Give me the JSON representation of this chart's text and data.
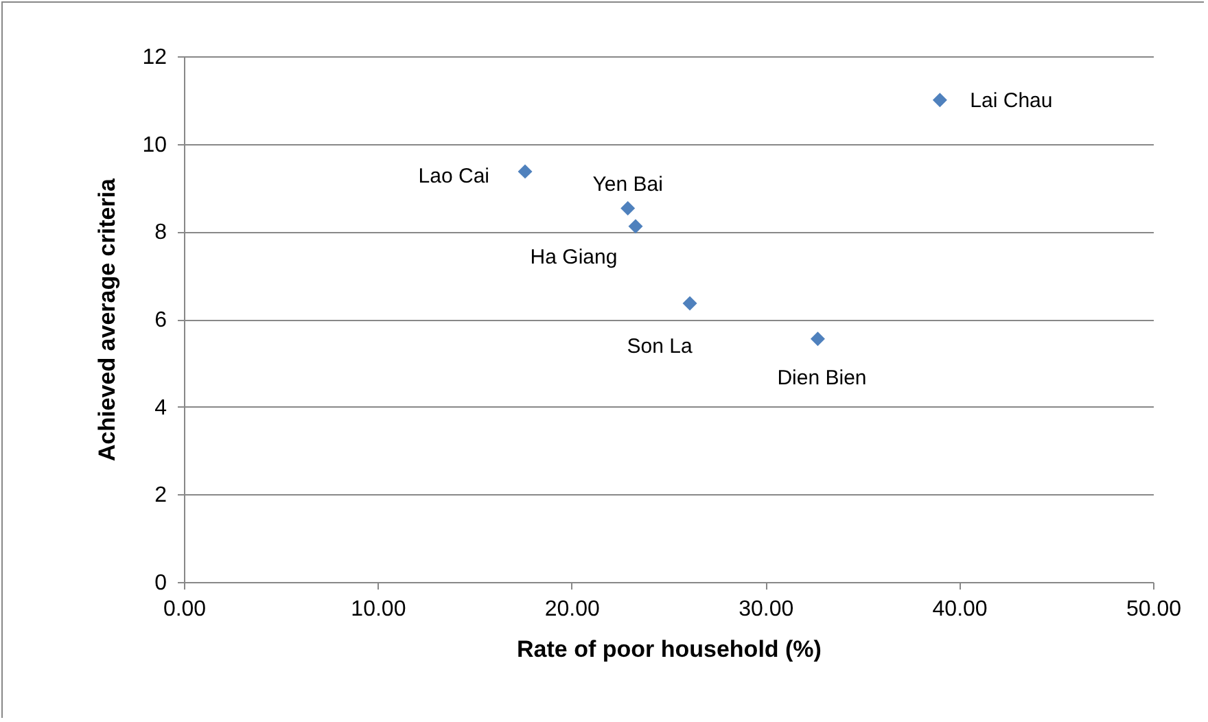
{
  "chart_data": {
    "type": "scatter",
    "xlabel": "Rate of poor household (%)",
    "ylabel": "Achieved average criteria",
    "x": [
      39.0,
      17.6,
      22.9,
      23.3,
      26.1,
      32.7
    ],
    "series": [
      {
        "color": "#4f81bd",
        "values": [
          11.0,
          9.37,
          8.53,
          8.12,
          6.36,
          5.55
        ]
      }
    ],
    "marker": "diamond",
    "grid": "y",
    "legend": false,
    "xlim": [
      0,
      50
    ],
    "xticks": [
      {
        "value": 0,
        "label": "0.00"
      },
      {
        "value": 10,
        "label": "10.00"
      },
      {
        "value": 20,
        "label": "20.00"
      },
      {
        "value": 30,
        "label": "30.00"
      },
      {
        "value": 40,
        "label": "40.00"
      },
      {
        "value": 50,
        "label": "50.00"
      }
    ],
    "ylim": [
      0,
      12
    ],
    "yticks": [
      0,
      2,
      4,
      6,
      8,
      10,
      12
    ],
    "annotations": [
      {
        "text": "Lai Chau",
        "x": 39.0,
        "y": 11.0
      },
      {
        "text": "Lao Cai",
        "x": 17.6,
        "y": 9.37
      },
      {
        "text": "Yen Bai",
        "x": 22.9,
        "y": 8.53
      },
      {
        "text": "Ha Giang",
        "x": 23.3,
        "y": 8.12
      },
      {
        "text": "Son La",
        "x": 26.1,
        "y": 6.36
      },
      {
        "text": "Dien Bien",
        "x": 32.7,
        "y": 5.55
      }
    ]
  }
}
